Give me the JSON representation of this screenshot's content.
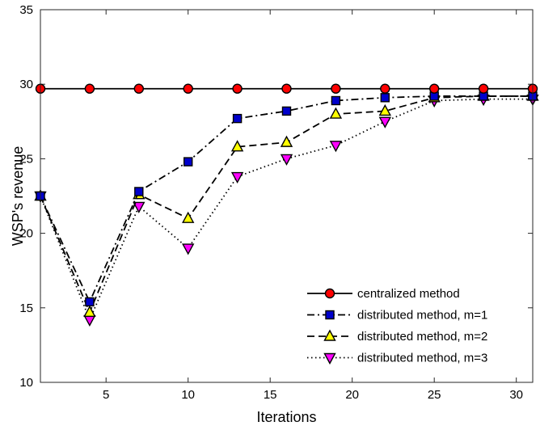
{
  "chart_data": {
    "type": "line",
    "title": "",
    "xlabel": "Iterations",
    "ylabel": "WSP's revenue",
    "xlim": [
      1,
      31
    ],
    "ylim": [
      10,
      35
    ],
    "xticks": [
      5,
      10,
      15,
      20,
      25,
      30
    ],
    "yticks": [
      10,
      15,
      20,
      25,
      30,
      35
    ],
    "grid": false,
    "legend_position": "bottom-right",
    "x": [
      1,
      4,
      7,
      10,
      13,
      16,
      19,
      22,
      25,
      28,
      31
    ],
    "series": [
      {
        "name": "centralized method",
        "values": [
          29.7,
          29.7,
          29.7,
          29.7,
          29.7,
          29.7,
          29.7,
          29.7,
          29.7,
          29.7,
          29.7
        ],
        "color": "#ff0000",
        "line_style": "solid",
        "marker": "circle"
      },
      {
        "name": "distributed method, m=1",
        "values": [
          22.5,
          15.4,
          22.8,
          24.8,
          27.7,
          28.2,
          28.9,
          29.1,
          29.2,
          29.2,
          29.2
        ],
        "color": "#0000cc",
        "line_style": "dashdot",
        "marker": "square"
      },
      {
        "name": "distributed method, m=2",
        "values": [
          22.5,
          14.7,
          22.6,
          21.0,
          25.8,
          26.1,
          28.0,
          28.2,
          29.1,
          29.2,
          29.2
        ],
        "color": "#ffff00",
        "line_style": "dashed",
        "marker": "triangle-up"
      },
      {
        "name": "distributed method, m=3",
        "values": [
          22.5,
          14.2,
          21.8,
          19.0,
          23.8,
          25.0,
          25.9,
          27.5,
          28.9,
          29.0,
          29.0
        ],
        "color": "#ff00ff",
        "line_style": "dotted",
        "marker": "triangle-down"
      }
    ]
  }
}
